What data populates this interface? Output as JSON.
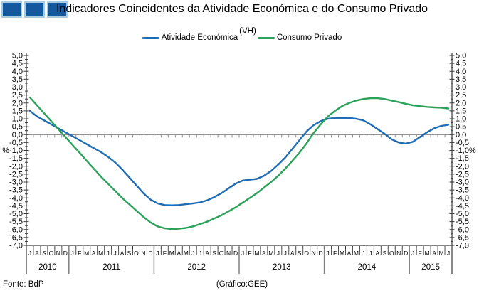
{
  "footer": {
    "source": "Fonte: BdP",
    "credit": "(Gráfico:GEE)"
  },
  "logo": {
    "square_color": "#16589E",
    "square_border": "#A9CBE2",
    "count": 3
  },
  "chart_data": {
    "type": "line",
    "title": "Indicadores Coincidentes da Atividade Económica e do Consumo Privado",
    "subtitle": "(VH)",
    "unit": "%",
    "legend_position": "top",
    "grid": "zero-line-only",
    "ylim": [
      -7.0,
      5.0
    ],
    "ytick_major_step": 0.5,
    "ytick_minor_step": 0.25,
    "axis_color": "#3A3A3A",
    "zero_line_color": "#909090",
    "x": [
      "J",
      "A",
      "S",
      "O",
      "N",
      "D",
      "J",
      "F",
      "M",
      "A",
      "M",
      "J",
      "J",
      "A",
      "S",
      "O",
      "N",
      "D",
      "J",
      "F",
      "M",
      "A",
      "M",
      "J",
      "J",
      "A",
      "S",
      "O",
      "N",
      "D",
      "J",
      "F",
      "M",
      "A",
      "M",
      "J",
      "J",
      "A",
      "S",
      "O",
      "N",
      "D",
      "J",
      "F",
      "M",
      "A",
      "M",
      "J",
      "J",
      "A",
      "S",
      "O",
      "N",
      "D",
      "J",
      "F",
      "M",
      "A",
      "M",
      "J"
    ],
    "years": [
      {
        "label": "2010",
        "months": 6
      },
      {
        "label": "2011",
        "months": 12
      },
      {
        "label": "2012",
        "months": 12
      },
      {
        "label": "2013",
        "months": 12
      },
      {
        "label": "2014",
        "months": 12
      },
      {
        "label": "2015",
        "months": 6
      }
    ],
    "series": [
      {
        "name": "Atividade Económica",
        "color": "#1E6DB5",
        "values": [
          1.5,
          1.15,
          0.9,
          0.65,
          0.4,
          0.15,
          -0.1,
          -0.35,
          -0.6,
          -0.85,
          -1.1,
          -1.4,
          -1.75,
          -2.2,
          -2.7,
          -3.2,
          -3.7,
          -4.1,
          -4.35,
          -4.45,
          -4.47,
          -4.45,
          -4.4,
          -4.35,
          -4.28,
          -4.15,
          -3.95,
          -3.7,
          -3.4,
          -3.1,
          -2.9,
          -2.85,
          -2.8,
          -2.6,
          -2.3,
          -1.9,
          -1.45,
          -0.9,
          -0.35,
          0.2,
          0.6,
          0.85,
          1.0,
          1.05,
          1.05,
          1.05,
          1.0,
          0.9,
          0.65,
          0.35,
          0.05,
          -0.3,
          -0.5,
          -0.57,
          -0.45,
          -0.15,
          0.15,
          0.4,
          0.55,
          0.62
        ]
      },
      {
        "name": "Consumo Privado",
        "color": "#2AA25A",
        "values": [
          2.35,
          1.85,
          1.35,
          0.85,
          0.35,
          -0.15,
          -0.65,
          -1.15,
          -1.65,
          -2.15,
          -2.65,
          -3.1,
          -3.55,
          -4.0,
          -4.4,
          -4.8,
          -5.2,
          -5.55,
          -5.8,
          -5.92,
          -5.97,
          -5.95,
          -5.9,
          -5.8,
          -5.65,
          -5.5,
          -5.3,
          -5.1,
          -4.85,
          -4.6,
          -4.3,
          -4.0,
          -3.7,
          -3.35,
          -3.0,
          -2.6,
          -2.15,
          -1.65,
          -1.15,
          -0.55,
          0.1,
          0.65,
          1.15,
          1.5,
          1.8,
          2.0,
          2.15,
          2.25,
          2.3,
          2.3,
          2.25,
          2.15,
          2.05,
          1.95,
          1.85,
          1.8,
          1.75,
          1.72,
          1.7,
          1.65
        ]
      }
    ]
  }
}
